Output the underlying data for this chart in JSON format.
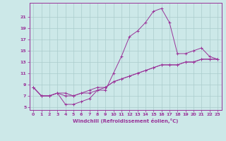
{
  "title": "",
  "xlabel": "Windchill (Refroidissement éolien,°C)",
  "background_color": "#cce8e8",
  "line_color": "#993399",
  "grid_color": "#aacccc",
  "x_hours": [
    0,
    1,
    2,
    3,
    4,
    5,
    6,
    7,
    8,
    9,
    10,
    11,
    12,
    13,
    14,
    15,
    16,
    17,
    18,
    19,
    20,
    21,
    22,
    23
  ],
  "windchill": [
    8.5,
    7.0,
    7.0,
    7.5,
    5.5,
    5.5,
    6.0,
    6.5,
    8.0,
    8.0,
    11.0,
    14.0,
    17.5,
    18.5,
    20.0,
    22.0,
    22.5,
    20.0,
    14.5,
    14.5,
    15.0,
    15.5,
    14.0,
    13.5
  ],
  "smooth1": [
    8.5,
    7.0,
    7.0,
    7.5,
    7.5,
    7.0,
    7.5,
    8.0,
    8.5,
    8.5,
    9.5,
    10.0,
    10.5,
    11.0,
    11.5,
    12.0,
    12.5,
    12.5,
    12.5,
    13.0,
    13.0,
    13.5,
    13.5,
    13.5
  ],
  "smooth2": [
    8.5,
    7.0,
    7.0,
    7.5,
    7.0,
    7.0,
    7.5,
    7.5,
    8.0,
    8.5,
    9.5,
    10.0,
    10.5,
    11.0,
    11.5,
    12.0,
    12.5,
    12.5,
    12.5,
    13.0,
    13.0,
    13.5,
    13.5,
    13.5
  ],
  "xlim": [
    -0.5,
    23.5
  ],
  "ylim": [
    4.5,
    23.5
  ],
  "yticks": [
    5,
    7,
    9,
    11,
    13,
    15,
    17,
    19,
    21
  ],
  "xticks": [
    0,
    1,
    2,
    3,
    4,
    5,
    6,
    7,
    8,
    9,
    10,
    11,
    12,
    13,
    14,
    15,
    16,
    17,
    18,
    19,
    20,
    21,
    22,
    23
  ]
}
